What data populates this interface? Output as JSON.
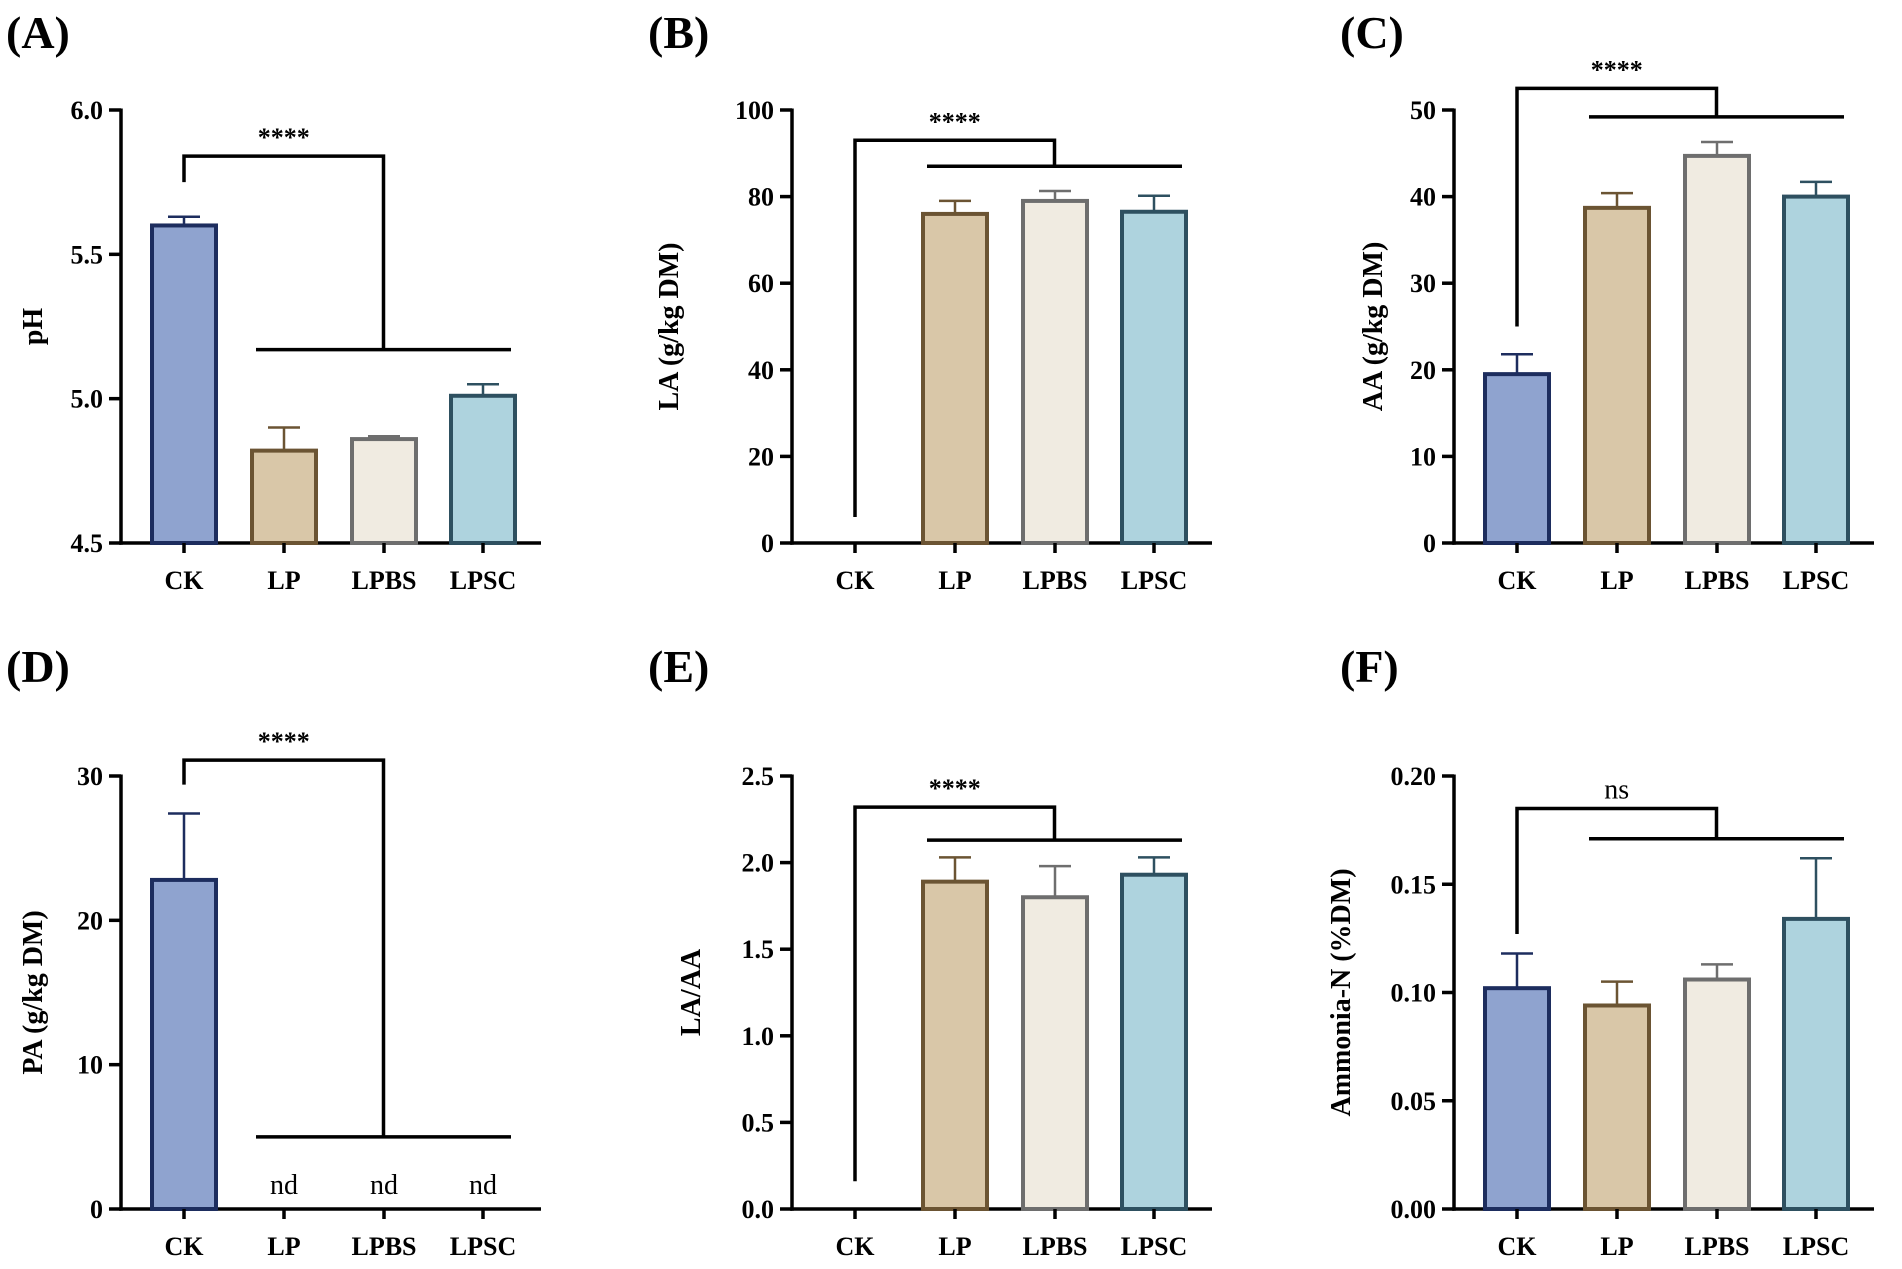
{
  "colors": {
    "CK": {
      "fill": "#8fa3cf",
      "stroke": "#1d2d5e"
    },
    "LP": {
      "fill": "#d9c7a8",
      "stroke": "#6b5433"
    },
    "LPBS": {
      "fill": "#f0ebe1",
      "stroke": "#6e6e6e"
    },
    "LPSC": {
      "fill": "#aed3de",
      "stroke": "#2e5060"
    }
  },
  "chart_data": [
    {
      "type": "bar",
      "label": "(A)",
      "ylabel": "pH",
      "categories": [
        "CK",
        "LP",
        "LPBS",
        "LPSC"
      ],
      "values": [
        5.6,
        4.82,
        4.86,
        5.01
      ],
      "errors": [
        0.03,
        0.08,
        0.01,
        0.04
      ],
      "ylim": [
        4.5,
        6.0
      ],
      "yticks": [
        "4.5",
        "5.0",
        "5.5",
        "6.0"
      ],
      "ytick_values": [
        4.5,
        5.0,
        5.5,
        6.0
      ],
      "nd": [],
      "significance": {
        "label": "****",
        "style": "bold",
        "left": "CK",
        "group": [
          "LP",
          "LPSC"
        ],
        "top_value": 5.84,
        "group_value": 5.17,
        "left_start": 5.75
      }
    },
    {
      "type": "bar",
      "label": "(B)",
      "ylabel": "LA (g/kg DM)",
      "categories": [
        "CK",
        "LP",
        "LPBS",
        "LPSC"
      ],
      "values": [
        0,
        76,
        79,
        76.5
      ],
      "errors": [
        0,
        3,
        2.3,
        3.7
      ],
      "ylim": [
        0,
        100
      ],
      "yticks": [
        "0",
        "20",
        "40",
        "60",
        "80",
        "100"
      ],
      "ytick_values": [
        0,
        20,
        40,
        60,
        80,
        100
      ],
      "nd": [],
      "significance": {
        "label": "****",
        "style": "bold",
        "left": "CK",
        "group": [
          "LP",
          "LPSC"
        ],
        "top_value": 93,
        "group_value": 87,
        "left_start": 6
      }
    },
    {
      "type": "bar",
      "label": "(C)",
      "ylabel": "AA (g/kg DM)",
      "categories": [
        "CK",
        "LP",
        "LPBS",
        "LPSC"
      ],
      "values": [
        19.5,
        38.7,
        44.7,
        40
      ],
      "errors": [
        2.3,
        1.7,
        1.6,
        1.7
      ],
      "ylim": [
        0,
        50
      ],
      "yticks": [
        "0",
        "10",
        "20",
        "30",
        "40",
        "50"
      ],
      "ytick_values": [
        0,
        10,
        20,
        30,
        40,
        50
      ],
      "nd": [],
      "significance": {
        "label": "****",
        "style": "bold",
        "left": "CK",
        "group": [
          "LP",
          "LPSC"
        ],
        "top_value": 52.5,
        "group_value": 49.2,
        "left_start": 25
      }
    },
    {
      "type": "bar",
      "label": "(D)",
      "ylabel": "PA (g/kg DM)",
      "categories": [
        "CK",
        "LP",
        "LPBS",
        "LPSC"
      ],
      "values": [
        22.8,
        0,
        0,
        0
      ],
      "errors": [
        4.6,
        0,
        0,
        0
      ],
      "ylim": [
        0,
        30
      ],
      "yticks": [
        "0",
        "10",
        "20",
        "30"
      ],
      "ytick_values": [
        0,
        10,
        20,
        30
      ],
      "nd": [
        "LP",
        "LPBS",
        "LPSC"
      ],
      "nd_label": "nd",
      "significance": {
        "label": "****",
        "style": "bold",
        "left": "CK",
        "group": [
          "LP",
          "LPSC"
        ],
        "top_value": 31.1,
        "group_value": 5,
        "left_start": 29.4
      }
    },
    {
      "type": "bar",
      "label": "(E)",
      "ylabel": "LA/AA",
      "categories": [
        "CK",
        "LP",
        "LPBS",
        "LPSC"
      ],
      "values": [
        0,
        1.89,
        1.8,
        1.93
      ],
      "errors": [
        0,
        0.14,
        0.18,
        0.1
      ],
      "ylim": [
        0,
        2.5
      ],
      "yticks": [
        "0.0",
        "0.5",
        "1.0",
        "1.5",
        "2.0",
        "2.5"
      ],
      "ytick_values": [
        0,
        0.5,
        1.0,
        1.5,
        2.0,
        2.5
      ],
      "nd": [],
      "significance": {
        "label": "****",
        "style": "bold",
        "left": "CK",
        "group": [
          "LP",
          "LPSC"
        ],
        "top_value": 2.32,
        "group_value": 2.13,
        "left_start": 0.16
      }
    },
    {
      "type": "bar",
      "label": "(F)",
      "ylabel": "Ammonia-N (%DM)",
      "categories": [
        "CK",
        "LP",
        "LPBS",
        "LPSC"
      ],
      "values": [
        0.102,
        0.094,
        0.106,
        0.134
      ],
      "errors": [
        0.016,
        0.011,
        0.007,
        0.028
      ],
      "ylim": [
        0,
        0.2
      ],
      "yticks": [
        "0.00",
        "0.05",
        "0.10",
        "0.15",
        "0.20"
      ],
      "ytick_values": [
        0,
        0.05,
        0.1,
        0.15,
        0.2
      ],
      "nd": [],
      "significance": {
        "label": "ns",
        "style": "normal",
        "left": "CK",
        "group": [
          "LP",
          "LPSC"
        ],
        "top_value": 0.185,
        "group_value": 0.171,
        "left_start": 0.127
      }
    }
  ]
}
